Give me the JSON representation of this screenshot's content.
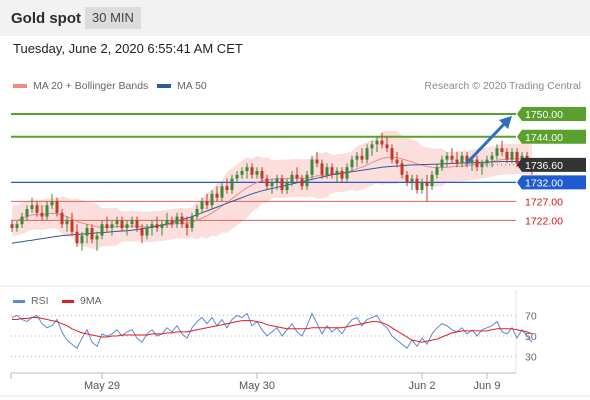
{
  "header": {
    "title": "Gold spot",
    "interval": "30 MIN"
  },
  "timestamp": "Tuesday, June 2, 2020 6:55:41 AM CET",
  "legend": [
    {
      "label": "MA 20 + Bollinger Bands",
      "color": "#f08a84"
    },
    {
      "label": "MA 50",
      "color": "#2e5b9c"
    }
  ],
  "credit": "Research © 2020 Trading Central",
  "rsi_legend": [
    {
      "label": "RSI",
      "color": "#5b8ad6"
    },
    {
      "label": "9MA",
      "color": "#e02020"
    }
  ],
  "colors": {
    "up": "#3a8a3a",
    "down": "#c0392b",
    "resistance": "#5aa02c",
    "support": "#1f5bd0",
    "target_line": "#e06060",
    "arrow": "#2f6fc0",
    "current": "#333333"
  },
  "chart_data": [
    {
      "type": "line",
      "subtype": "candlestick",
      "xlabel": "",
      "ylabel": "",
      "x_ticks": [
        "May 29",
        "May 30",
        "Jun 2",
        "Jun 9"
      ],
      "ylim": [
        1705,
        1755
      ],
      "grid": false,
      "levels": [
        {
          "label": "1750.00",
          "value": 1750,
          "kind": "resistance"
        },
        {
          "label": "1744.00",
          "value": 1744,
          "kind": "resistance"
        },
        {
          "label": "1736.60",
          "value": 1736.6,
          "kind": "current"
        },
        {
          "label": "1732.00",
          "value": 1732,
          "kind": "support"
        },
        {
          "label": "1727.00",
          "value": 1727,
          "kind": "target"
        },
        {
          "label": "1722.00",
          "value": 1722,
          "kind": "target"
        }
      ],
      "candles": [
        [
          1721,
          1722,
          1719,
          1720
        ],
        [
          1720,
          1722,
          1719,
          1721
        ],
        [
          1721,
          1724,
          1720,
          1723
        ],
        [
          1723,
          1726,
          1722,
          1725
        ],
        [
          1725,
          1728,
          1724,
          1726
        ],
        [
          1726,
          1727,
          1723,
          1724
        ],
        [
          1724,
          1726,
          1722,
          1723
        ],
        [
          1723,
          1727,
          1722,
          1726
        ],
        [
          1726,
          1729,
          1725,
          1727
        ],
        [
          1727,
          1728,
          1723,
          1724
        ],
        [
          1724,
          1725,
          1720,
          1721
        ],
        [
          1721,
          1723,
          1719,
          1722
        ],
        [
          1722,
          1724,
          1718,
          1719
        ],
        [
          1719,
          1721,
          1715,
          1716
        ],
        [
          1716,
          1719,
          1714,
          1718
        ],
        [
          1718,
          1721,
          1716,
          1720
        ],
        [
          1720,
          1721,
          1716,
          1717
        ],
        [
          1717,
          1719,
          1714,
          1718
        ],
        [
          1718,
          1722,
          1717,
          1721
        ],
        [
          1721,
          1723,
          1719,
          1720
        ],
        [
          1720,
          1722,
          1718,
          1721
        ],
        [
          1721,
          1723,
          1720,
          1722
        ],
        [
          1722,
          1723,
          1719,
          1720
        ],
        [
          1720,
          1722,
          1718,
          1721
        ],
        [
          1721,
          1723,
          1720,
          1722
        ],
        [
          1722,
          1723,
          1719,
          1720
        ],
        [
          1720,
          1721,
          1716,
          1718
        ],
        [
          1718,
          1721,
          1717,
          1720
        ],
        [
          1720,
          1722,
          1718,
          1721
        ],
        [
          1721,
          1723,
          1719,
          1720
        ],
        [
          1720,
          1722,
          1718,
          1721
        ],
        [
          1721,
          1724,
          1720,
          1722
        ],
        [
          1722,
          1723,
          1720,
          1721
        ],
        [
          1721,
          1724,
          1720,
          1723
        ],
        [
          1723,
          1724,
          1720,
          1721
        ],
        [
          1721,
          1723,
          1718,
          1720
        ],
        [
          1720,
          1724,
          1719,
          1723
        ],
        [
          1723,
          1726,
          1722,
          1725
        ],
        [
          1725,
          1728,
          1724,
          1727
        ],
        [
          1727,
          1729,
          1725,
          1726
        ],
        [
          1726,
          1730,
          1725,
          1729
        ],
        [
          1729,
          1731,
          1727,
          1728
        ],
        [
          1728,
          1732,
          1727,
          1731
        ],
        [
          1731,
          1733,
          1729,
          1730
        ],
        [
          1730,
          1734,
          1729,
          1733
        ],
        [
          1733,
          1735,
          1732,
          1734
        ],
        [
          1734,
          1736,
          1733,
          1735
        ],
        [
          1735,
          1737,
          1733,
          1736
        ],
        [
          1736,
          1737,
          1733,
          1734
        ],
        [
          1734,
          1736,
          1733,
          1735
        ],
        [
          1735,
          1736,
          1732,
          1733
        ],
        [
          1733,
          1734,
          1730,
          1731
        ],
        [
          1731,
          1733,
          1729,
          1732
        ],
        [
          1732,
          1734,
          1730,
          1733
        ],
        [
          1733,
          1734,
          1729,
          1730
        ],
        [
          1730,
          1733,
          1729,
          1732
        ],
        [
          1732,
          1735,
          1731,
          1734
        ],
        [
          1734,
          1736,
          1732,
          1733
        ],
        [
          1733,
          1734,
          1730,
          1731
        ],
        [
          1731,
          1735,
          1730,
          1734
        ],
        [
          1734,
          1739,
          1733,
          1738
        ],
        [
          1738,
          1740,
          1736,
          1737
        ],
        [
          1737,
          1738,
          1733,
          1734
        ],
        [
          1734,
          1737,
          1733,
          1736
        ],
        [
          1736,
          1737,
          1733,
          1734
        ],
        [
          1734,
          1736,
          1732,
          1735
        ],
        [
          1735,
          1736,
          1732,
          1733
        ],
        [
          1733,
          1737,
          1732,
          1736
        ],
        [
          1736,
          1739,
          1735,
          1738
        ],
        [
          1738,
          1740,
          1736,
          1739
        ],
        [
          1739,
          1741,
          1737,
          1738
        ],
        [
          1738,
          1742,
          1737,
          1741
        ],
        [
          1741,
          1743,
          1739,
          1742
        ],
        [
          1742,
          1744,
          1740,
          1743
        ],
        [
          1743,
          1745,
          1741,
          1742
        ],
        [
          1742,
          1744,
          1740,
          1741
        ],
        [
          1741,
          1742,
          1737,
          1738
        ],
        [
          1738,
          1740,
          1736,
          1737
        ],
        [
          1737,
          1738,
          1733,
          1734
        ],
        [
          1734,
          1735,
          1731,
          1732
        ],
        [
          1732,
          1734,
          1730,
          1733
        ],
        [
          1733,
          1734,
          1729,
          1730
        ],
        [
          1730,
          1733,
          1729,
          1732
        ],
        [
          1732,
          1734,
          1727,
          1731
        ],
        [
          1731,
          1735,
          1730,
          1734
        ],
        [
          1734,
          1737,
          1733,
          1736
        ],
        [
          1736,
          1739,
          1735,
          1738
        ],
        [
          1738,
          1740,
          1736,
          1739
        ],
        [
          1739,
          1741,
          1737,
          1738
        ],
        [
          1738,
          1740,
          1736,
          1737
        ],
        [
          1737,
          1740,
          1736,
          1739
        ],
        [
          1739,
          1740,
          1736,
          1737
        ],
        [
          1737,
          1739,
          1735,
          1738
        ],
        [
          1738,
          1739,
          1735,
          1736
        ],
        [
          1736,
          1738,
          1734,
          1737
        ],
        [
          1737,
          1739,
          1736,
          1738
        ],
        [
          1738,
          1740,
          1736,
          1739
        ],
        [
          1739,
          1742,
          1738,
          1741
        ],
        [
          1741,
          1743,
          1739,
          1740
        ],
        [
          1740,
          1741,
          1737,
          1738
        ],
        [
          1738,
          1741,
          1737,
          1740
        ],
        [
          1740,
          1741,
          1736,
          1737
        ],
        [
          1737,
          1740,
          1736,
          1739
        ],
        [
          1739,
          1740,
          1736,
          1737
        ],
        [
          1737,
          1738,
          1734,
          1736
        ]
      ],
      "ma20": [
        1722,
        1722,
        1722.5,
        1723,
        1723.5,
        1723.5,
        1723.5,
        1723.7,
        1723.9,
        1723.8,
        1723.4,
        1723,
        1722.4,
        1721.7,
        1721.3,
        1721,
        1720.6,
        1720.3,
        1720.2,
        1720.2,
        1720.3,
        1720.4,
        1720.4,
        1720.4,
        1720.5,
        1720.5,
        1720.3,
        1720.3,
        1720.4,
        1720.5,
        1720.6,
        1720.8,
        1721,
        1721.2,
        1721.3,
        1721.2,
        1721.5,
        1722,
        1722.6,
        1723.2,
        1724,
        1724.8,
        1725.8,
        1726.7,
        1727.7,
        1728.7,
        1729.7,
        1730.6,
        1731.3,
        1732,
        1732.5,
        1732.6,
        1732.8,
        1733,
        1733,
        1733,
        1733.1,
        1733.2,
        1733.1,
        1733.1,
        1733.4,
        1733.7,
        1733.8,
        1734,
        1734.2,
        1734.4,
        1734.5,
        1734.7,
        1735.1,
        1735.6,
        1736,
        1736.6,
        1737.2,
        1737.8,
        1738.3,
        1738.6,
        1738.6,
        1738.5,
        1738.2,
        1737.8,
        1737.4,
        1736.9,
        1736.5,
        1736.2,
        1736,
        1735.9,
        1735.9,
        1736,
        1736.1,
        1736.2,
        1736.3,
        1736.4,
        1736.6,
        1736.8,
        1737,
        1737.2,
        1737.5,
        1737.8,
        1738,
        1738.1,
        1738.2,
        1738.2,
        1738.2,
        1738.1,
        1738
      ],
      "ma50": [
        1716,
        1716.2,
        1716.4,
        1716.6,
        1716.8,
        1717,
        1717.2,
        1717.4,
        1717.6,
        1717.8,
        1718,
        1718.1,
        1718.2,
        1718.3,
        1718.4,
        1718.5,
        1718.6,
        1718.7,
        1718.8,
        1718.9,
        1719,
        1719.1,
        1719.2,
        1719.3,
        1719.4,
        1719.6,
        1719.8,
        1720,
        1720.2,
        1720.5,
        1720.8,
        1721.1,
        1721.4,
        1721.8,
        1722.2,
        1722.6,
        1723,
        1723.5,
        1724,
        1724.5,
        1725,
        1725.5,
        1726,
        1726.5,
        1727,
        1727.5,
        1728,
        1728.5,
        1729,
        1729.4,
        1729.8,
        1730.1,
        1730.4,
        1730.7,
        1731,
        1731.3,
        1731.6,
        1731.9,
        1732.2,
        1732.5,
        1732.8,
        1733.1,
        1733.4,
        1733.7,
        1734,
        1734.2,
        1734.4,
        1734.6,
        1734.8,
        1735,
        1735.2,
        1735.4,
        1735.6,
        1735.8,
        1736,
        1736.1,
        1736.2,
        1736.3,
        1736.4,
        1736.5,
        1736.6,
        1736.6,
        1736.7,
        1736.7,
        1736.8,
        1736.8,
        1736.9,
        1736.9,
        1737,
        1737,
        1737.1,
        1737.1,
        1737.2,
        1737.2,
        1737.3,
        1737.3,
        1737.4,
        1737.4,
        1737.5,
        1737.5,
        1737.5,
        1737.5,
        1737.5,
        1737.5,
        1737.5
      ],
      "bb_width": [
        4,
        4,
        4,
        4,
        4,
        4,
        4,
        4,
        4,
        4,
        5,
        5,
        5,
        6,
        6,
        6,
        6,
        6,
        5,
        5,
        5,
        5,
        4,
        4,
        4,
        4,
        4,
        4,
        4,
        4,
        4,
        4,
        4,
        4,
        4,
        4,
        4,
        5,
        5,
        6,
        6,
        7,
        7,
        8,
        8,
        8,
        8,
        8,
        7,
        7,
        6,
        6,
        5,
        5,
        5,
        5,
        5,
        5,
        5,
        5,
        5,
        6,
        6,
        6,
        5,
        5,
        5,
        5,
        5,
        6,
        6,
        6,
        6,
        6,
        7,
        7,
        7,
        7,
        6,
        6,
        6,
        6,
        5,
        5,
        5,
        5,
        5,
        4,
        4,
        4,
        4,
        4,
        4,
        4,
        4,
        4,
        4,
        4,
        4,
        4,
        4,
        4,
        4,
        4,
        4
      ]
    },
    {
      "type": "line",
      "title": "",
      "xlabel": "",
      "ylabel": "",
      "ylim": [
        15,
        85
      ],
      "y_ticks": [
        70,
        50,
        30
      ],
      "series": [
        {
          "name": "RSI",
          "values": [
            68,
            70,
            66,
            64,
            68,
            70,
            62,
            58,
            60,
            66,
            54,
            46,
            42,
            38,
            48,
            56,
            44,
            40,
            52,
            50,
            52,
            56,
            50,
            54,
            56,
            48,
            44,
            52,
            56,
            50,
            52,
            58,
            54,
            60,
            52,
            48,
            58,
            64,
            68,
            62,
            68,
            60,
            66,
            58,
            66,
            70,
            68,
            72,
            60,
            64,
            56,
            50,
            54,
            58,
            50,
            56,
            62,
            54,
            50,
            60,
            72,
            62,
            52,
            60,
            54,
            58,
            52,
            60,
            66,
            68,
            60,
            66,
            68,
            70,
            62,
            58,
            50,
            46,
            42,
            38,
            46,
            40,
            48,
            42,
            52,
            58,
            62,
            60,
            56,
            54,
            58,
            52,
            56,
            50,
            56,
            58,
            60,
            64,
            54,
            52,
            58,
            48,
            56,
            50,
            44
          ]
        },
        {
          "name": "9MA",
          "values": [
            66,
            66,
            67,
            67,
            68,
            68,
            67,
            66,
            65,
            64,
            62,
            60,
            57,
            55,
            53,
            52,
            51,
            50,
            49,
            49,
            50,
            50,
            51,
            51,
            51,
            51,
            51,
            51,
            52,
            52,
            52,
            53,
            53,
            54,
            54,
            54,
            55,
            56,
            57,
            58,
            59,
            60,
            61,
            62,
            63,
            64,
            65,
            65,
            65,
            64,
            63,
            61,
            60,
            59,
            58,
            57,
            57,
            57,
            57,
            57,
            58,
            58,
            58,
            58,
            58,
            58,
            58,
            59,
            60,
            61,
            62,
            63,
            64,
            64,
            63,
            61,
            58,
            55,
            52,
            49,
            46,
            45,
            44,
            45,
            46,
            47,
            49,
            51,
            53,
            54,
            55,
            55,
            55,
            55,
            55,
            55,
            56,
            57,
            57,
            57,
            57,
            56,
            55,
            54,
            52
          ]
        }
      ]
    }
  ]
}
